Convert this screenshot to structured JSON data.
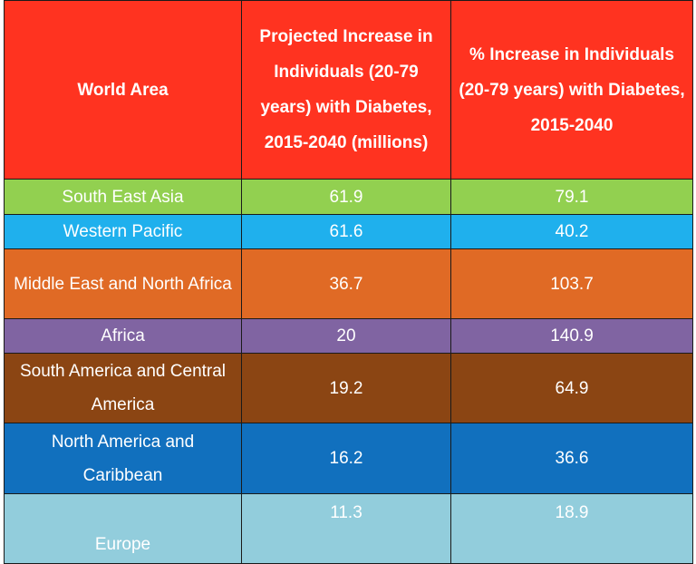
{
  "table": {
    "headers": [
      "World Area",
      "Projected Increase in Individuals (20-79 years) with Diabetes, 2015-2040 (millions)",
      "% Increase in Individuals (20-79 years) with Diabetes, 2015-2040"
    ],
    "rows": [
      {
        "area": "South East Asia",
        "increase": "61.9",
        "percent": "79.1",
        "color": "#92d050"
      },
      {
        "area": "Western Pacific",
        "increase": "61.6",
        "percent": "40.2",
        "color": "#1fb0ed"
      },
      {
        "area": "Middle East and North Africa",
        "increase": "36.7",
        "percent": "103.7",
        "color": "#e06a25"
      },
      {
        "area": "Africa",
        "increase": "20",
        "percent": "140.9",
        "color": "#8064a2"
      },
      {
        "area": "South America and Central America",
        "increase": "19.2",
        "percent": "64.9",
        "color": "#8b4513"
      },
      {
        "area": "North America and Caribbean",
        "increase": "16.2",
        "percent": "36.6",
        "color": "#1170be"
      },
      {
        "area": "Europe",
        "increase": "11.3",
        "percent": "18.9",
        "color": "#92cddc"
      }
    ],
    "header_color": "#ff3320"
  }
}
